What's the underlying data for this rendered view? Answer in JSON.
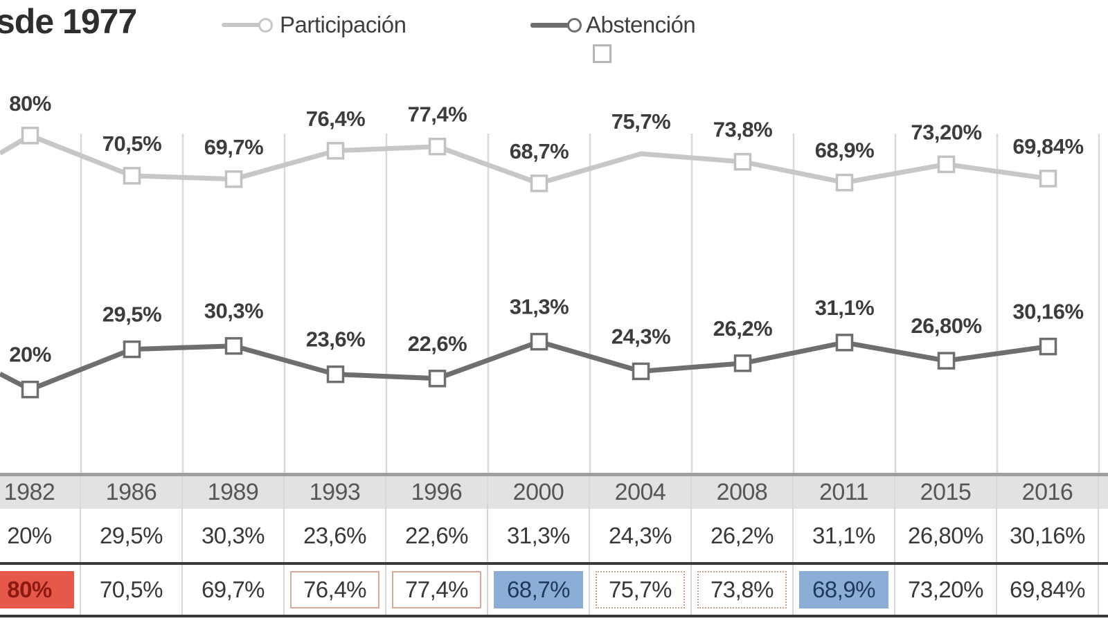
{
  "title": "sde 1977",
  "legend": {
    "items": [
      {
        "label": "Participación",
        "marker": "circle"
      },
      {
        "label": "Abstención",
        "marker": "circle"
      }
    ]
  },
  "colors": {
    "participacion_line": "#c7c7c7",
    "participacion_marker": "#c2c2c2",
    "abstencion_line": "#6e6e6e",
    "abstencion_marker": "#6e6e6e",
    "grid": "#d9d9d9",
    "label_text": "#3c3c3c",
    "year_header_bg": "#e2e2e2",
    "year_header_border": "#9f9f9f",
    "row_separator": "#3a3a3a",
    "highlight_red_bg": "#e65849",
    "highlight_red_text": "#8c1a10",
    "highlight_blue_bg": "#8badd6",
    "highlight_blue_text": "#1d3a5e",
    "highlight_outline_solid": "#dba99c",
    "highlight_outline_dotted": "#cb9b85"
  },
  "chart_data": {
    "type": "line",
    "categories": [
      "1982",
      "1986",
      "1989",
      "1993",
      "1996",
      "2000",
      "2004",
      "2008",
      "2011",
      "2015",
      "2016"
    ],
    "series": [
      {
        "name": "Participación",
        "key": "participacion",
        "values": [
          80,
          70.5,
          69.7,
          76.4,
          77.4,
          68.7,
          75.7,
          73.8,
          68.9,
          73.2,
          69.84
        ],
        "labels": [
          "80%",
          "70,5%",
          "69,7%",
          "76,4%",
          "77,4%",
          "68,7%",
          "75,7%",
          "73,8%",
          "68,9%",
          "73,20%",
          "69,84%"
        ],
        "edge_start": 75.8,
        "no_marker_at": [
          "2004"
        ],
        "color": "#c7c7c7",
        "marker_color": "#c2c2c2"
      },
      {
        "name": "Abstención",
        "key": "abstencion",
        "values": [
          20,
          29.5,
          30.3,
          23.6,
          22.6,
          31.3,
          24.3,
          26.2,
          31.1,
          26.8,
          30.16
        ],
        "labels": [
          "20%",
          "29,5%",
          "30,3%",
          "23,6%",
          "22,6%",
          "31,3%",
          "24,3%",
          "26,2%",
          "31,1%",
          "26,80%",
          "30,16%"
        ],
        "edge_start": 23.7,
        "no_marker_at": [],
        "color": "#6e6e6e",
        "marker_color": "#6e6e6e"
      }
    ],
    "ylim": [
      0,
      100
    ],
    "grid": "vertical-only",
    "legend_position": "top",
    "marker_shape": "open-square"
  },
  "table": {
    "years": [
      "1982",
      "1986",
      "1989",
      "1993",
      "1996",
      "2000",
      "2004",
      "2008",
      "2011",
      "2015",
      "2016"
    ],
    "rows": [
      {
        "key": "abstencion",
        "values": [
          "20%",
          "29,5%",
          "30,3%",
          "23,6%",
          "22,6%",
          "31,3%",
          "24,3%",
          "26,2%",
          "31,1%",
          "26,80%",
          "30,16%"
        ],
        "emphasis": [
          null,
          null,
          null,
          null,
          null,
          null,
          null,
          null,
          null,
          null,
          null
        ]
      },
      {
        "key": "participacion",
        "values": [
          "80%",
          "70,5%",
          "69,7%",
          "76,4%",
          "77,4%",
          "68,7%",
          "75,7%",
          "73,8%",
          "68,9%",
          "73,20%",
          "69,84%"
        ],
        "emphasis": [
          "fill-red",
          null,
          null,
          "outline-solid",
          "outline-solid",
          "fill-blue",
          "outline-dotted",
          "outline-dotted",
          "fill-blue",
          null,
          null
        ]
      }
    ]
  }
}
